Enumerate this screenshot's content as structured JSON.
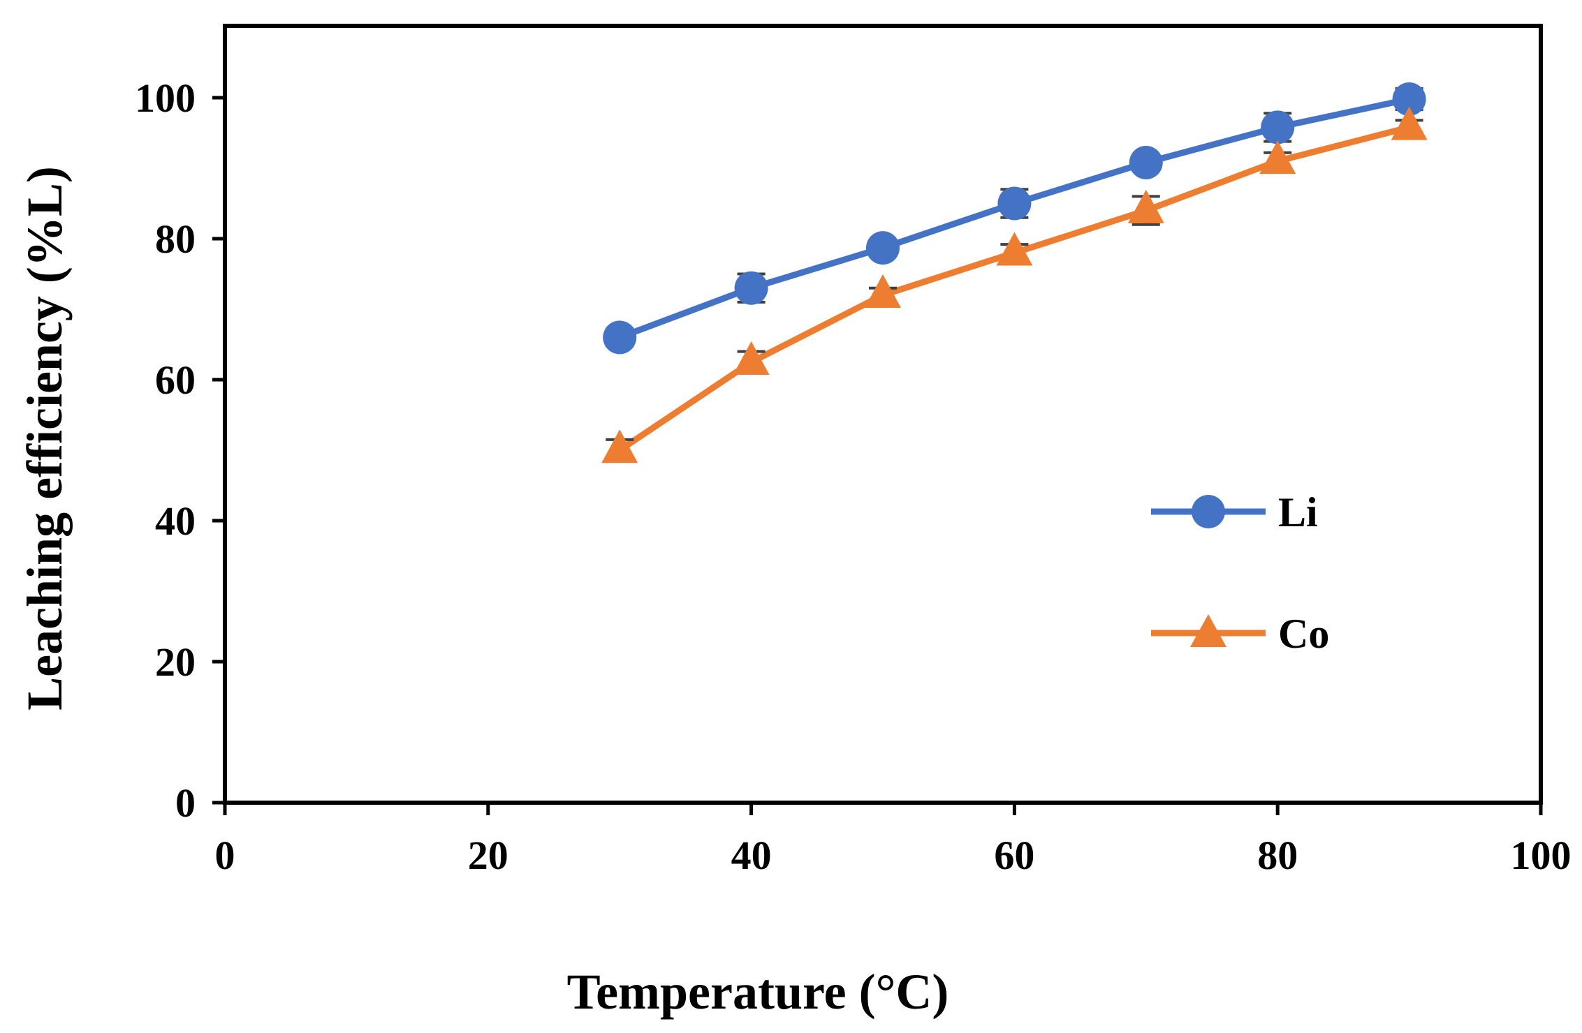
{
  "chart_data": {
    "type": "line",
    "title": "",
    "xlabel": "Temperature (°C)",
    "ylabel": "Leaching efficiency (%L)",
    "xlim": [
      0,
      100
    ],
    "ylim": [
      0,
      110
    ],
    "xticks": [
      0,
      20,
      40,
      60,
      80,
      100
    ],
    "yticks": [
      0,
      20,
      40,
      60,
      80,
      100
    ],
    "x": [
      30,
      40,
      50,
      60,
      70,
      80,
      90
    ],
    "legend_position": "right-middle",
    "series": [
      {
        "name": "Li",
        "marker": "circle",
        "color": "#4472C4",
        "values": [
          66,
          73,
          78.7,
          85,
          90.8,
          95.8,
          99.8
        ],
        "errors": [
          1.2,
          2.0,
          1.0,
          2.0,
          1.0,
          2.0,
          1.5
        ]
      },
      {
        "name": "Co",
        "marker": "triangle",
        "color": "#ED7D31",
        "values": [
          50,
          62.5,
          72,
          78,
          84,
          91,
          95.8
        ],
        "errors": [
          1.5,
          1.5,
          1.0,
          1.2,
          2.0,
          1.2,
          1.0
        ]
      }
    ]
  },
  "colors": {
    "axis": "#000000",
    "error_bar": "#404040"
  }
}
